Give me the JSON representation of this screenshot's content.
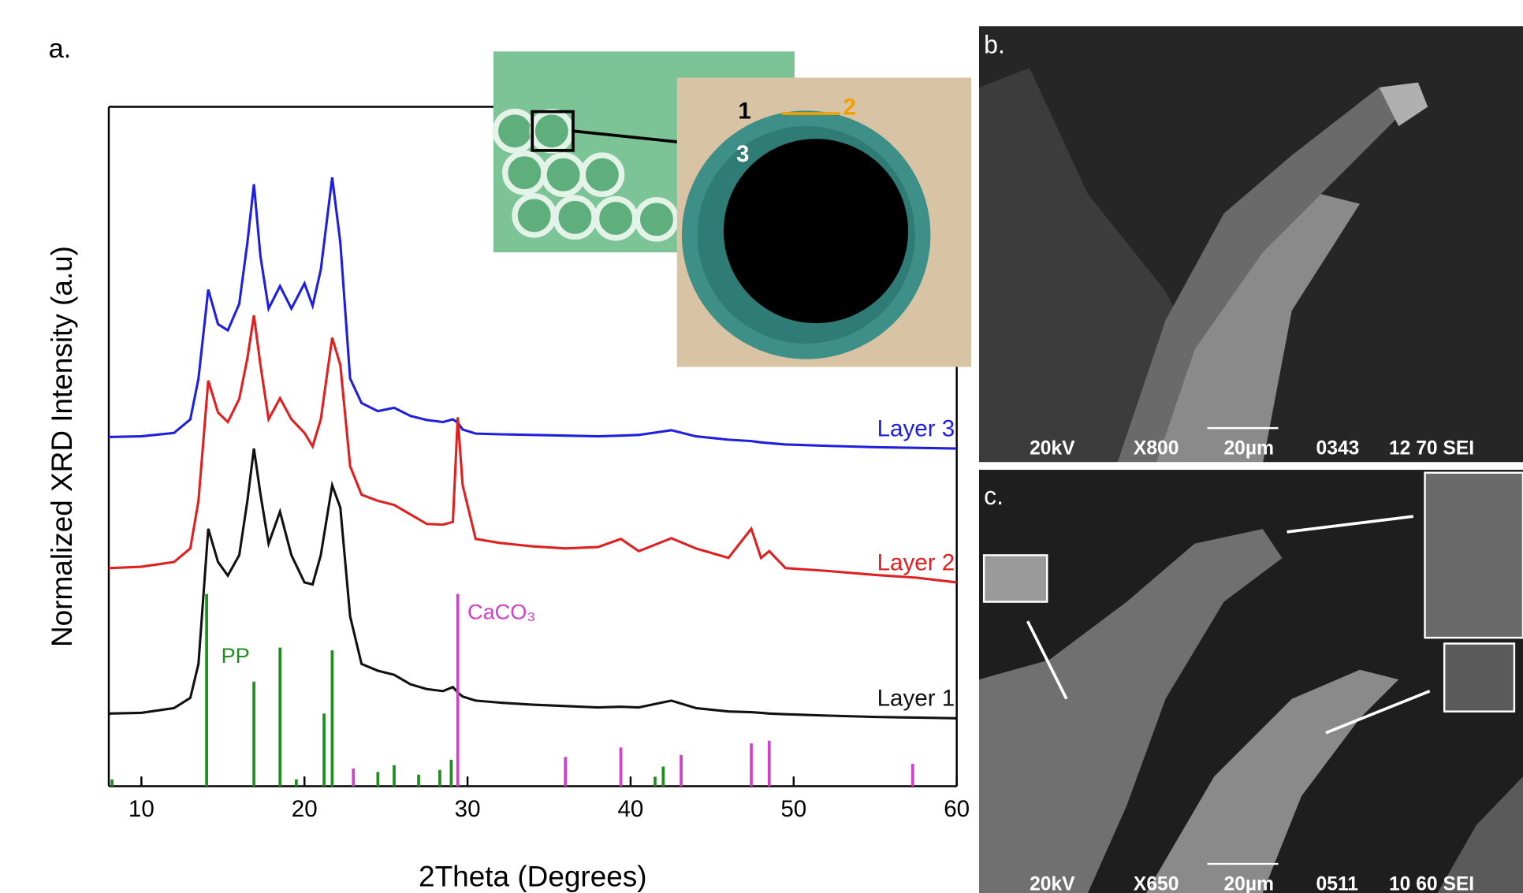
{
  "chart_data": {
    "type": "line",
    "xlabel": "2Theta (Degrees)",
    "ylabel": "Normalized XRD Intensity (a.u)",
    "xlim": [
      8,
      60
    ],
    "xticks": [
      10,
      20,
      30,
      40,
      50,
      60
    ],
    "ylim": [
      0,
      100
    ],
    "x": [
      8,
      10,
      12,
      13,
      13.5,
      14.1,
      14.7,
      15.3,
      16,
      16.5,
      16.9,
      17.3,
      17.8,
      18.5,
      19.2,
      20,
      20.5,
      21,
      21.7,
      22.2,
      22.8,
      23.5,
      24.5,
      25.5,
      26.5,
      27.5,
      28.5,
      29.1,
      29.4,
      29.7,
      30.5,
      32,
      34,
      36,
      38,
      39.4,
      40.5,
      42.5,
      44,
      46,
      47.4,
      48,
      48.5,
      49.5,
      52,
      55,
      57.5,
      60
    ],
    "series": [
      {
        "name": "Layer 3",
        "color": "#1f1fe0",
        "values": [
          51.4,
          51.5,
          52,
          54,
          60,
          73.1,
          68,
          67.1,
          71,
          80,
          88.6,
          78,
          70.3,
          73.6,
          70.3,
          74,
          70.7,
          76,
          89.6,
          80,
          60,
          56.4,
          55.2,
          55.7,
          54.5,
          53.9,
          53.6,
          54,
          53.5,
          52.5,
          51.9,
          51.8,
          51.7,
          51.6,
          51.5,
          51.6,
          51.7,
          52.4,
          51.5,
          51,
          50.8,
          50.6,
          50.5,
          50.3,
          50.1,
          49.9,
          49.8,
          49.7
        ]
      },
      {
        "name": "Layer 2",
        "color": "#e01f1f",
        "values": [
          32.1,
          32.3,
          33,
          35,
          42,
          59.7,
          55,
          53.6,
          57,
          63,
          69.3,
          62,
          54,
          57.1,
          54,
          52,
          50,
          54,
          66,
          62,
          47.1,
          42.9,
          42,
          41.4,
          40,
          38.6,
          38.5,
          38.9,
          54.3,
          44.3,
          36.4,
          35.8,
          35.3,
          35,
          35.2,
          36.4,
          34.6,
          36.5,
          35,
          33.6,
          37.9,
          33.6,
          34.6,
          32.1,
          31.7,
          31.1,
          30.7,
          30
        ]
      },
      {
        "name": "Layer 1",
        "color": "#111111",
        "values": [
          10.7,
          10.8,
          11.5,
          13,
          18,
          37.9,
          33,
          31,
          34,
          42,
          49.7,
          43,
          35.7,
          40.4,
          34,
          30,
          29.7,
          34,
          44.3,
          41,
          25,
          18,
          17,
          16.4,
          15,
          14.3,
          14,
          14.6,
          13.8,
          13.2,
          12.6,
          12.3,
          12,
          11.8,
          11.6,
          11.7,
          11.6,
          12.6,
          11.5,
          11,
          10.9,
          10.8,
          10.7,
          10.6,
          10.4,
          10.2,
          10.1,
          10
        ]
      }
    ],
    "references": [
      {
        "name": "PP",
        "color": "#1e8f1e",
        "positions": [
          8.2,
          14.0,
          16.9,
          18.5,
          19.5,
          21.2,
          21.7,
          24.5,
          25.5,
          27.0,
          28.3,
          29.0,
          41.5,
          42.0
        ],
        "values": [
          1,
          28.3,
          15.4,
          20.4,
          1,
          10.7,
          20,
          2.1,
          3.1,
          1.7,
          2.4,
          3.9,
          1.4,
          2.9
        ]
      },
      {
        "name": "CaCO₃",
        "color": "#d23fc8",
        "positions": [
          23.0,
          29.4,
          36.0,
          39.4,
          43.1,
          47.4,
          48.5,
          57.3
        ],
        "values": [
          2.6,
          28.3,
          4.3,
          5.7,
          4.6,
          6.3,
          6.7,
          3.3
        ]
      }
    ]
  },
  "panel_labels": [
    "a.",
    "b.",
    "c."
  ],
  "photo_labels": [
    "1",
    "2",
    "3"
  ],
  "sem_b": [
    "20kV",
    "X800",
    "20µm",
    "0343",
    "12 70 SEI"
  ],
  "sem_c": [
    "20kV",
    "X650",
    "20µm",
    "0511",
    "10 60 SEI"
  ]
}
